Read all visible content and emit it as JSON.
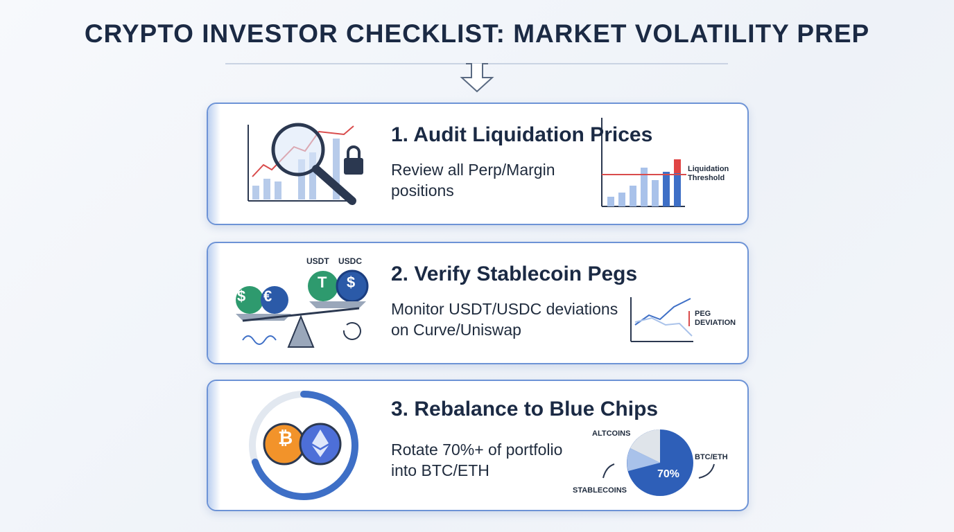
{
  "header": {
    "title": "CRYPTO INVESTOR CHECKLIST: MARKET VOLATILITY PREP"
  },
  "items": [
    {
      "heading": "1. Audit Liquidation Prices",
      "text": "Review all Perp/Margin positions",
      "chart_label": "Liquidation Threshold"
    },
    {
      "heading": "2. Verify Stablecoin Pegs",
      "text": "Monitor USDT/USDC deviations on Curve/Uniswap",
      "coin_labels": [
        "USDT",
        "USDC"
      ],
      "coin_symbols": [
        "$",
        "€",
        "T",
        "$"
      ],
      "chart_label": "PEG DEVIATION"
    },
    {
      "heading": "3. Rebalance to Blue Chips",
      "text": "Rotate 70%+ of portfolio into BTC/ETH",
      "coin_symbols": [
        "₿"
      ],
      "pie_labels": [
        "ALTCOINS",
        "BTC/ETH",
        "STABLECOINS"
      ],
      "pie_value_label": "70%"
    }
  ]
}
